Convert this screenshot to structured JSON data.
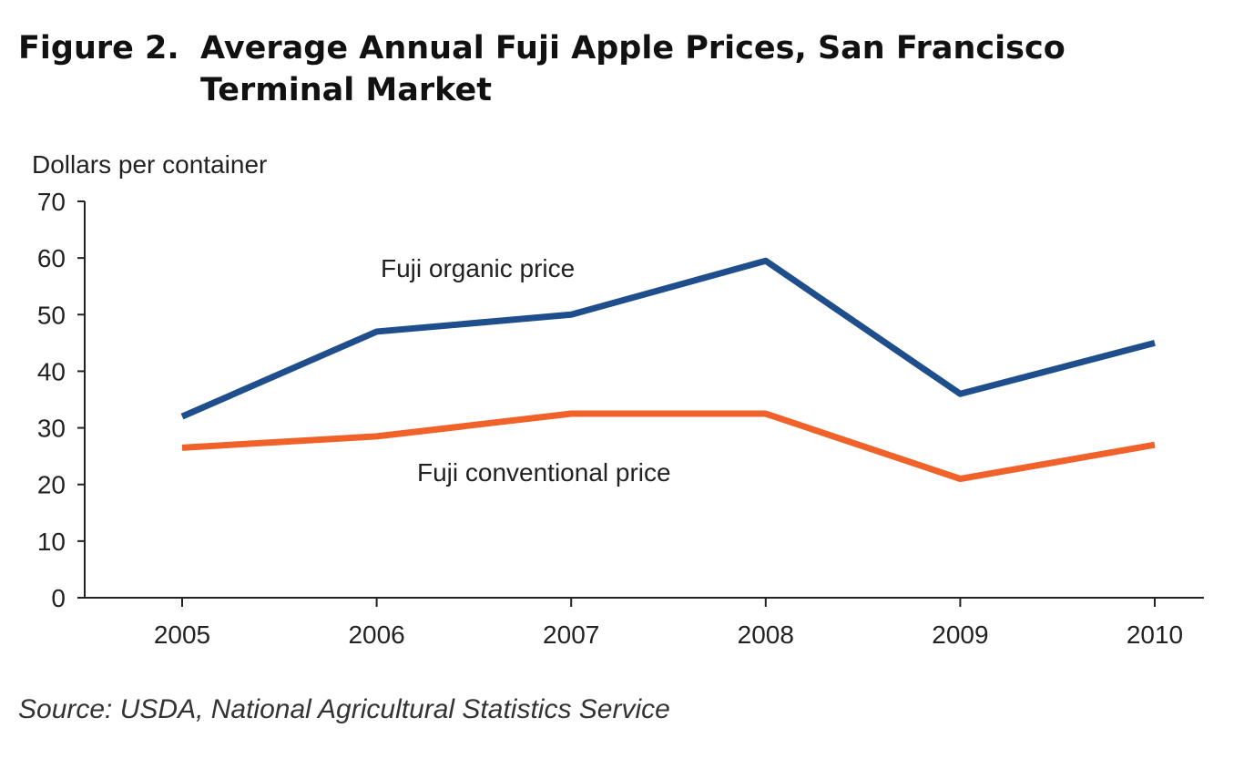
{
  "figure_label": "Figure 2.",
  "title_line1": "Average Annual Fuji Apple Prices, San Francisco",
  "title_line2": "Terminal Market",
  "source": "Source: USDA, National Agricultural Statistics Service",
  "chart_data": {
    "type": "line",
    "title": "Average Annual Fuji Apple Prices, San Francisco Terminal Market",
    "ylabel": "Dollars per container",
    "xlabel": "",
    "categories": [
      "2005",
      "2006",
      "2007",
      "2008",
      "2009",
      "2010"
    ],
    "ylim": [
      0,
      70
    ],
    "yticks": [
      0,
      10,
      20,
      30,
      40,
      50,
      60,
      70
    ],
    "grid": false,
    "series": [
      {
        "name": "Fuji organic price",
        "color": "#1f4e8c",
        "values": [
          32,
          47,
          50,
          59.5,
          36,
          45
        ]
      },
      {
        "name": "Fuji conventional price",
        "color": "#f0622a",
        "values": [
          26.5,
          28.5,
          32.5,
          32.5,
          21,
          27
        ]
      }
    ]
  }
}
